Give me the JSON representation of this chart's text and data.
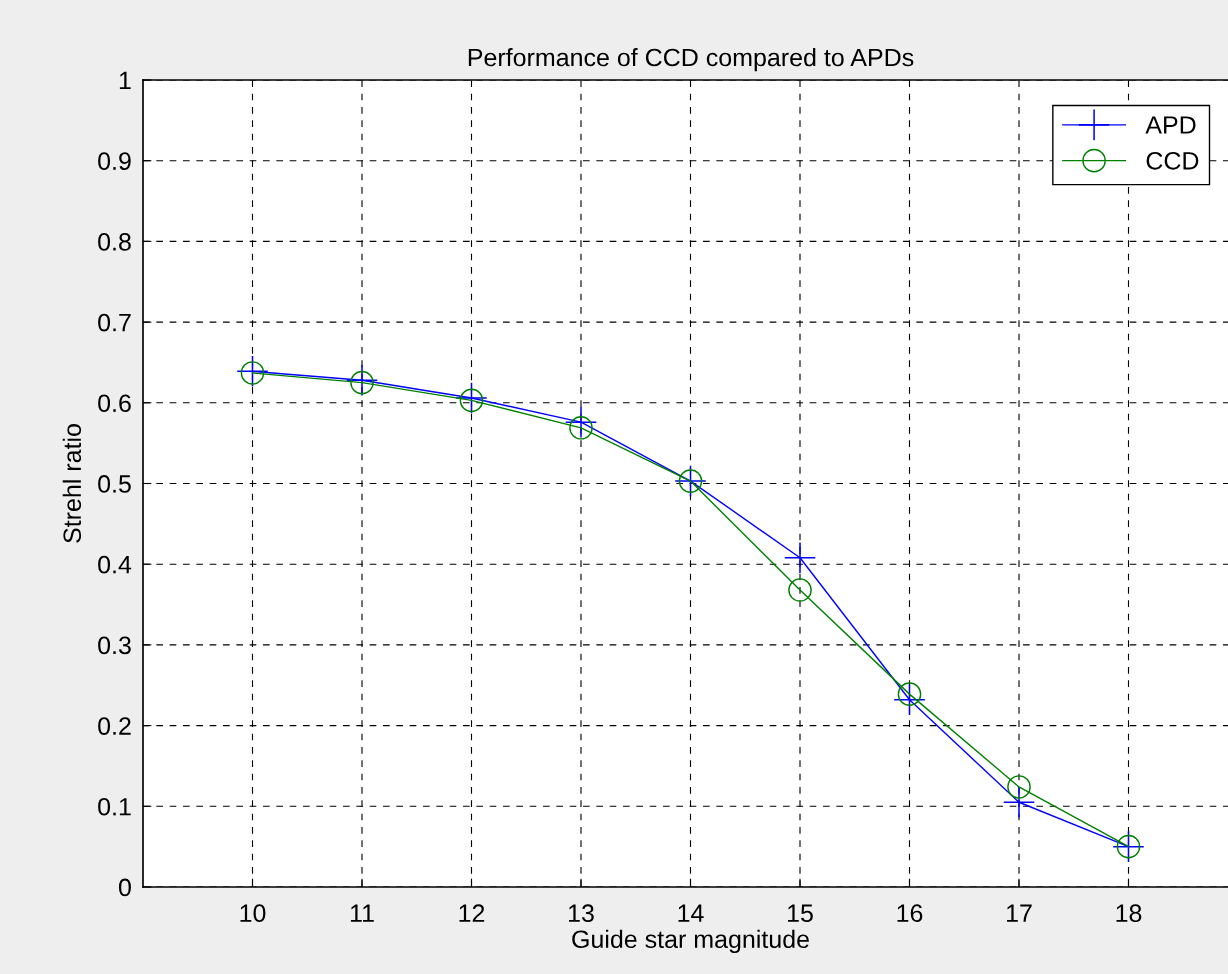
{
  "chart_data": {
    "type": "line",
    "title": "Performance of CCD compared to APDs",
    "xlabel": "Guide star magnitude",
    "ylabel": "Strehl ratio",
    "x": [
      10,
      11,
      12,
      13,
      14,
      15,
      16,
      17,
      18
    ],
    "series": [
      {
        "name": "APD",
        "color": "#0000ff",
        "marker": "cross",
        "values": [
          0.639,
          0.628,
          0.606,
          0.576,
          0.503,
          0.408,
          0.232,
          0.105,
          0.05
        ]
      },
      {
        "name": "CCD",
        "color": "#008000",
        "marker": "circle",
        "values": [
          0.637,
          0.625,
          0.603,
          0.569,
          0.503,
          0.368,
          0.239,
          0.124,
          0.05
        ]
      }
    ],
    "xlim": [
      9,
      19
    ],
    "xticks": [
      10,
      11,
      12,
      13,
      14,
      15,
      16,
      17,
      18
    ],
    "ylim": [
      0,
      1
    ],
    "yticks": [
      0,
      0.1,
      0.2,
      0.3,
      0.4,
      0.5,
      0.6,
      0.7,
      0.8,
      0.9,
      1
    ],
    "grid": true,
    "legend": "top right",
    "line_style": "solid"
  }
}
